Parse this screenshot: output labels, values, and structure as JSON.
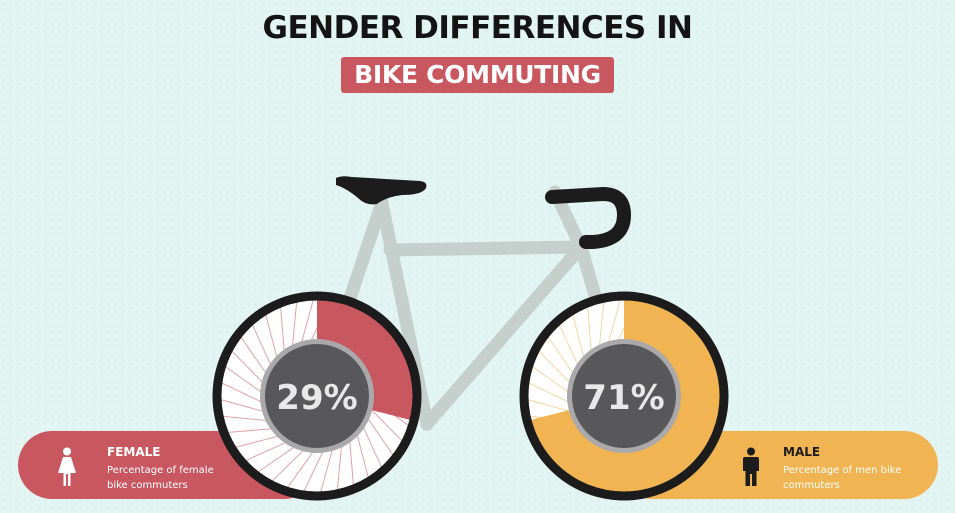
{
  "title": "GENDER DIFFERENCES IN",
  "subtitle": "BIKE COMMUTING",
  "colors": {
    "female": "#c95760",
    "male": "#f1b452",
    "frame": "#c5cfcc",
    "tire": "#1c1c1c",
    "hub": "#58585a"
  },
  "chart_data": {
    "type": "pie",
    "categories": [
      "FEMALE",
      "MALE"
    ],
    "values": [
      29,
      71
    ],
    "unit": "%",
    "data_labels": [
      "29%",
      "71%"
    ]
  },
  "left_panel": {
    "label": "FEMALE",
    "description": "Percentage of female bike commuters",
    "icon": "female-person-icon"
  },
  "right_panel": {
    "label": "MALE",
    "description": "Percentage of men bike commuters",
    "icon": "male-person-icon"
  }
}
